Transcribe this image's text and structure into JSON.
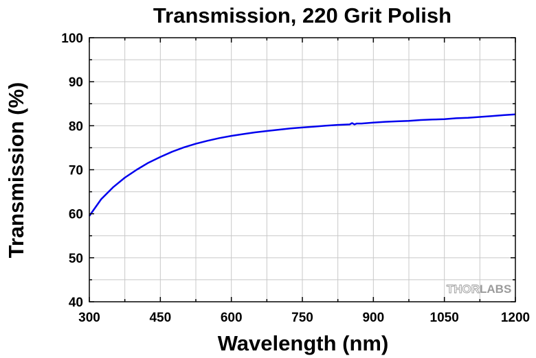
{
  "chart_data": {
    "type": "line",
    "title": "Transmission, 220 Grit Polish",
    "xlabel": "Wavelength (nm)",
    "ylabel": "Transmission (%)",
    "xlim": [
      300,
      1200
    ],
    "ylim": [
      40,
      100
    ],
    "xticks": [
      300,
      450,
      600,
      750,
      900,
      1050,
      1200
    ],
    "yticks": [
      40,
      50,
      60,
      70,
      80,
      90,
      100
    ],
    "grid": true,
    "watermark": {
      "part1": "THOR",
      "part2": "LABS"
    },
    "series": [
      {
        "color": "#0000ee",
        "x": [
          300,
          325,
          350,
          375,
          400,
          425,
          450,
          475,
          500,
          525,
          550,
          575,
          600,
          625,
          650,
          675,
          700,
          725,
          750,
          775,
          800,
          825,
          850,
          855,
          860,
          865,
          875,
          900,
          925,
          950,
          975,
          1000,
          1025,
          1050,
          1075,
          1100,
          1125,
          1150,
          1175,
          1200
        ],
        "y": [
          59.5,
          63.3,
          66.0,
          68.2,
          70.0,
          71.6,
          72.9,
          74.1,
          75.1,
          75.9,
          76.6,
          77.2,
          77.7,
          78.1,
          78.5,
          78.8,
          79.1,
          79.4,
          79.6,
          79.8,
          80.0,
          80.2,
          80.3,
          80.6,
          80.3,
          80.5,
          80.5,
          80.7,
          80.9,
          81.0,
          81.1,
          81.3,
          81.4,
          81.5,
          81.7,
          81.8,
          82.0,
          82.2,
          82.4,
          82.6
        ]
      }
    ]
  }
}
